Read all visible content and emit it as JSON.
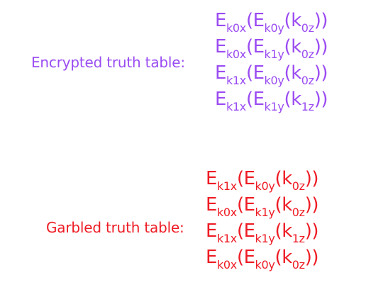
{
  "colors": {
    "encrypted": "#9b4cf2",
    "garbled": "#ee1c25"
  },
  "encrypted": {
    "label": "Encrypted truth table:",
    "rows": [
      {
        "a": "E",
        "as": "k0x",
        "b": "(E",
        "bs": "k0y",
        "c": "(k",
        "cs": "0z",
        "d": "))"
      },
      {
        "a": "E",
        "as": "k0x",
        "b": "(E",
        "bs": "k1y",
        "c": "(k",
        "cs": "0z",
        "d": "))"
      },
      {
        "a": "E",
        "as": "k1x",
        "b": "(E",
        "bs": "k0y",
        "c": "(k",
        "cs": "0z",
        "d": "))"
      },
      {
        "a": "E",
        "as": "k1x",
        "b": "(E",
        "bs": "k1y",
        "c": "(k",
        "cs": "1z",
        "d": "))"
      }
    ]
  },
  "garbled": {
    "label": "Garbled truth table:",
    "rows": [
      {
        "a": "E",
        "as": "k1x",
        "b": "(E",
        "bs": "k0y",
        "c": "(k",
        "cs": "0z",
        "d": "))"
      },
      {
        "a": "E",
        "as": "k0x",
        "b": "(E",
        "bs": "k1y",
        "c": "(k",
        "cs": "0z",
        "d": "))"
      },
      {
        "a": "E",
        "as": "k1x",
        "b": "(E",
        "bs": "k1y",
        "c": "(k",
        "cs": "1z",
        "d": "))"
      },
      {
        "a": "E",
        "as": "k0x",
        "b": "(E",
        "bs": "k0y",
        "c": "(k",
        "cs": "0z",
        "d": "))"
      }
    ]
  }
}
